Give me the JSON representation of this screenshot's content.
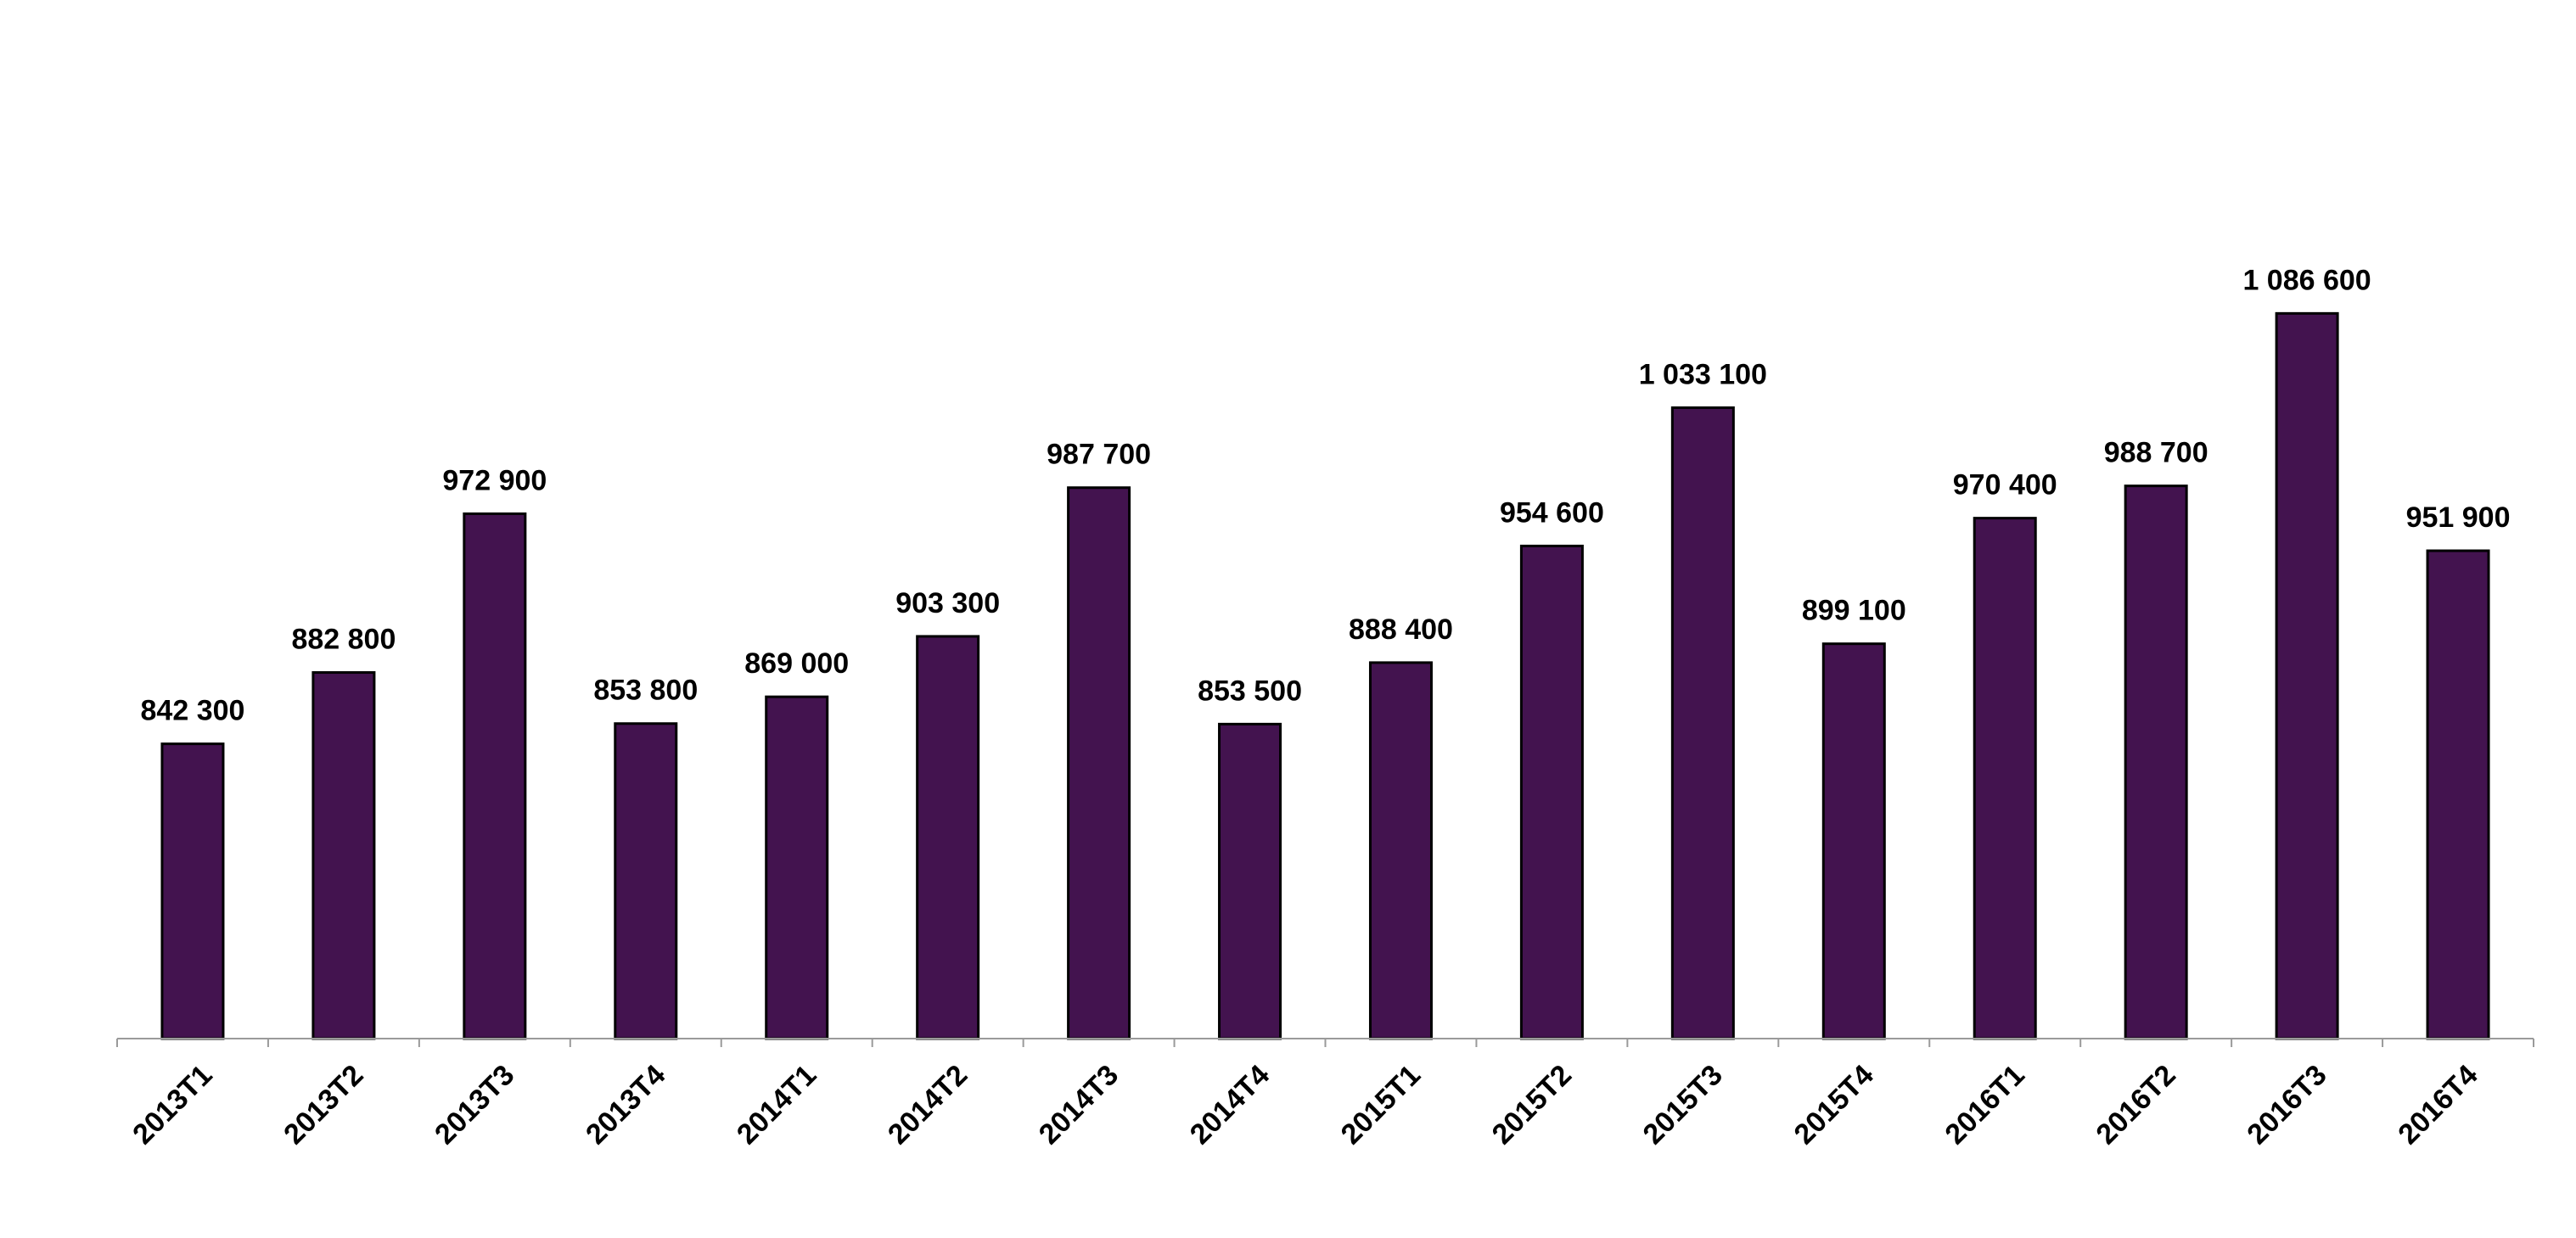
{
  "chart_data": {
    "type": "bar",
    "title": "",
    "xlabel": "",
    "ylabel": "",
    "categories": [
      "2013T1",
      "2013T2",
      "2013T3",
      "2013T4",
      "2014T1",
      "2014T2",
      "2014T3",
      "2014T4",
      "2015T1",
      "2015T2",
      "2015T3",
      "2015T4",
      "2016T1",
      "2016T2",
      "2016T3",
      "2016T4"
    ],
    "values": [
      842300,
      882800,
      972900,
      853800,
      869000,
      903300,
      987700,
      853500,
      888400,
      954600,
      1033100,
      899100,
      970400,
      988700,
      1086600,
      951900
    ],
    "value_labels": [
      "842 300",
      "882 800",
      "972 900",
      "853 800",
      "869 000",
      "903 300",
      "987 700",
      "853 500",
      "888 400",
      "954 600",
      "1 033 100",
      "899 100",
      "970 400",
      "988 700",
      "1 086 600",
      "951 900"
    ],
    "ylim": [
      675000,
      1120000
    ],
    "grid": false,
    "legend": "none",
    "y_axis_visible": false,
    "colors": {
      "bar_fill": "#43134f",
      "bar_stroke": "#000000",
      "axis": "#9a9a9a",
      "text": "#000000"
    }
  }
}
